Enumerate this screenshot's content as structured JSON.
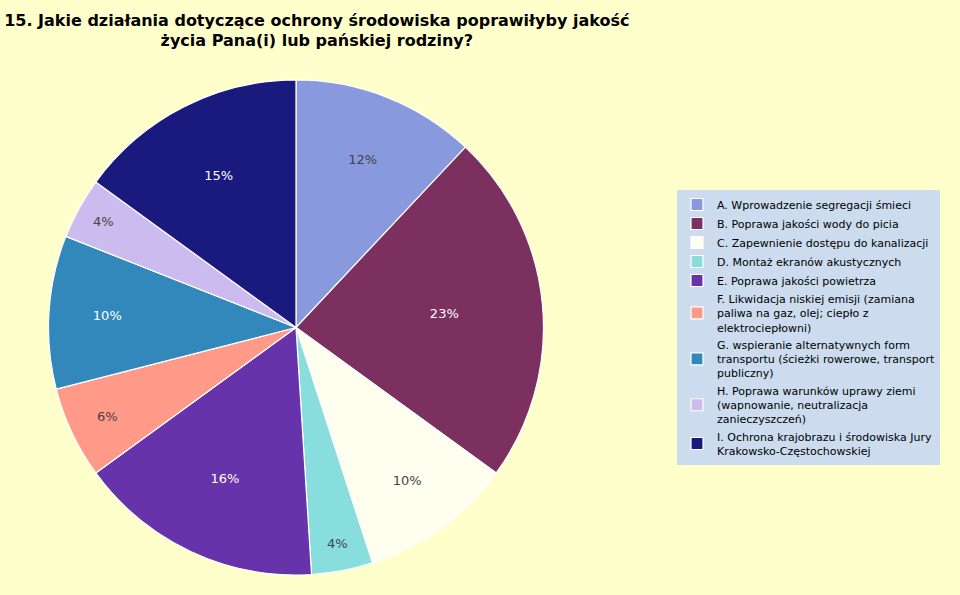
{
  "chart_data": {
    "type": "pie",
    "title": "15. Jakie działania dotyczące ochrony środowiska poprawiłyby jakość\nżycia Pana(i) lub pańskiej rodziny?",
    "categories": [
      "A. Wprowadzenie segregacji śmieci",
      "B. Poprawa jakości wody do picia",
      "C. Zapewnienie dostępu do kanalizacji",
      "D. Montaż ekranów akustycznych",
      "E. Poprawa jakości powietrza",
      "F. Likwidacja niskiej emisji (zamiana\npaliwa na gaz, olej; ciepło z\nelektrociepłowni)",
      "G. wspieranie alternatywnych form\ntransportu (ścieżki rowerowe, transport\npubliczny)",
      "H. Poprawa warunków uprawy ziemi\n(wapnowanie, neutralizacja\nzanieczyszczeń)",
      "I. Ochrona krajobrazu i środowiska Jury\nKrakowsko-Częstochowskiej"
    ],
    "values": [
      12,
      23,
      10,
      4,
      16,
      6,
      10,
      4,
      15
    ],
    "value_labels": [
      "12%",
      "23%",
      "10%",
      "4%",
      "16%",
      "6%",
      "10%",
      "4%",
      "15%"
    ],
    "colors": [
      "#8899DD",
      "#7B3060",
      "#FFFFF0",
      "#88DDDD",
      "#6633AA",
      "#FF9988",
      "#3388BB",
      "#CCBBEE",
      "#1A1A7E"
    ],
    "data_labels": true,
    "legend": "right"
  }
}
